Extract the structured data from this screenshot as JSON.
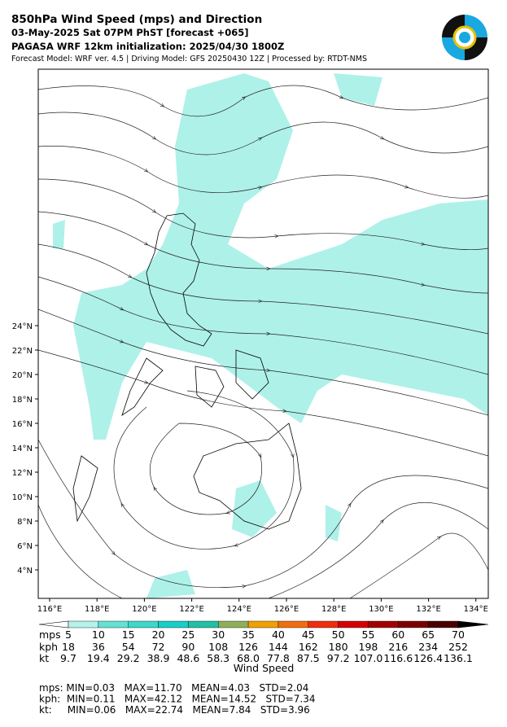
{
  "header": {
    "title": "850hPa Wind Speed (mps) and Direction",
    "date": "03-May-2025 Sat 07PM PhST [forecast +065]",
    "init": "PAGASA WRF 12km initialization: 2025/04/30 1800Z",
    "credits": "Forecast Model: WRF ver. 4.5 | Driving Model: GFS 20250430 12Z | Processed by: RTDT-NMS"
  },
  "map": {
    "lat_labels": [
      "4°N",
      "6°N",
      "8°N",
      "10°N",
      "12°N",
      "14°N",
      "16°N",
      "18°N",
      "20°N",
      "22°N",
      "24°N"
    ],
    "lon_labels": [
      "116°E",
      "118°E",
      "120°E",
      "122°E",
      "124°E",
      "126°E",
      "128°E",
      "130°E",
      "132°E",
      "134°E"
    ]
  },
  "colorbar": {
    "title": "Wind Speed",
    "row_labels": [
      "mps",
      "kph",
      "kt"
    ],
    "mps": [
      5,
      10,
      15,
      20,
      25,
      30,
      35,
      40,
      45,
      50,
      55,
      60,
      65,
      70
    ],
    "kph": [
      18,
      36,
      54,
      72,
      90,
      108,
      126,
      144,
      162,
      180,
      198,
      216,
      234,
      252
    ],
    "kt": [
      "9.7",
      "19.4",
      "29.2",
      "38.9",
      "48.6",
      "58.3",
      "68.0",
      "77.8",
      "87.5",
      "97.2",
      "107.0",
      "116.6",
      "126.4",
      "136.1"
    ],
    "colors": [
      "#ffffff",
      "#b4f2ea",
      "#64e2d4",
      "#3cd8ca",
      "#18cec8",
      "#22c0a6",
      "#8fae5a",
      "#f0a000",
      "#f06e10",
      "#f02e0c",
      "#d40000",
      "#a20000",
      "#7c0000",
      "#4a0000",
      "#000000"
    ]
  },
  "stats": [
    "mps: MIN=0.03   MAX=11.70   MEAN=4.03   STD=2.04",
    "kph:  MIN=0.11   MAX=42.12   MEAN=14.52   STD=7.34",
    "kt:     MIN=0.06   MAX=22.74   MEAN=7.84   STD=3.96"
  ]
}
